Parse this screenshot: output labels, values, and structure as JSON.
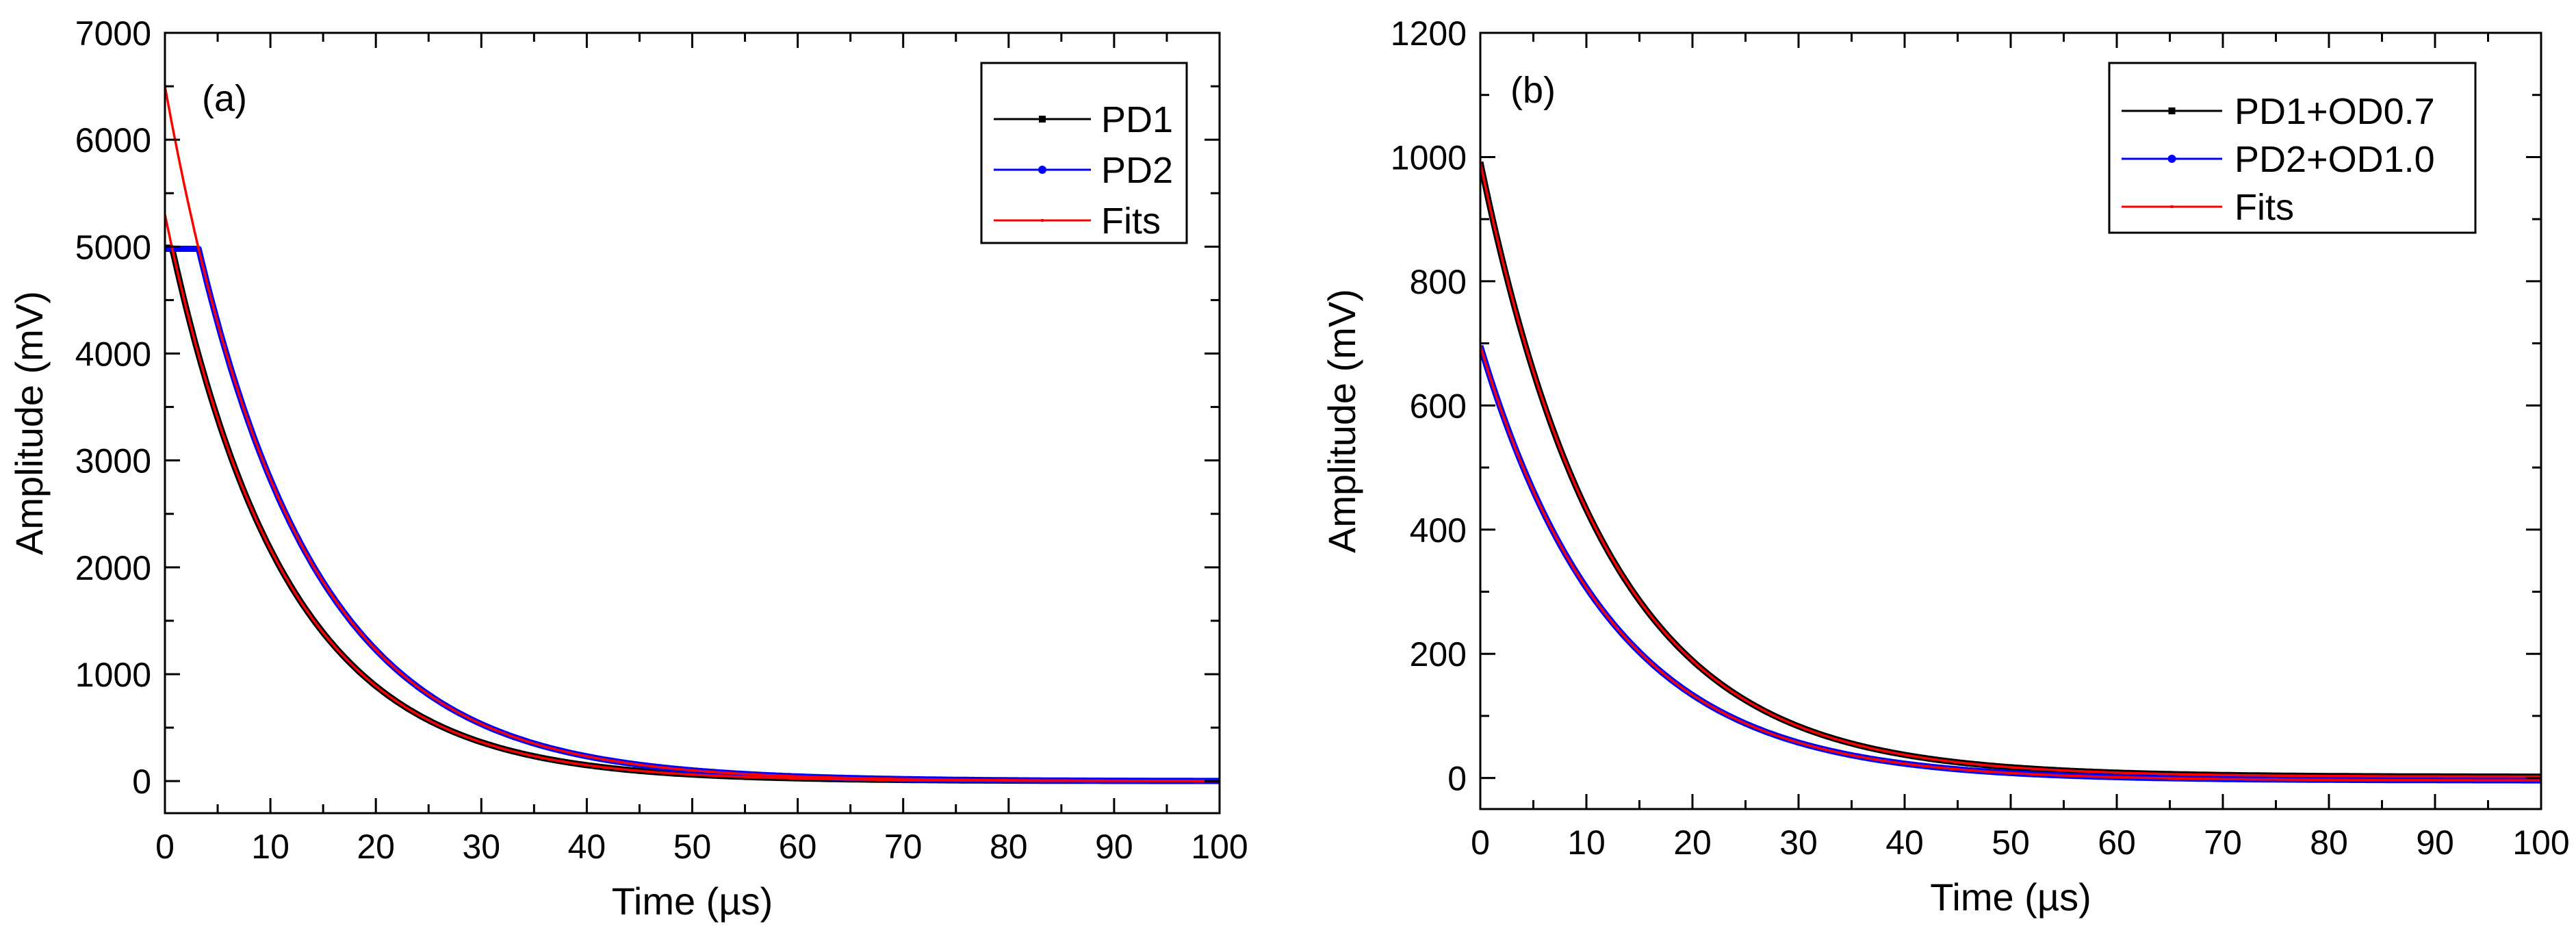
{
  "chart_data": [
    {
      "type": "line",
      "panel_label": "(a)",
      "title": "",
      "xlabel": "Time (µs)",
      "ylabel": "Amplitude (mV)",
      "xlim": [
        0,
        100
      ],
      "ylim": [
        -300,
        7000
      ],
      "xticks": [
        0,
        10,
        20,
        30,
        40,
        50,
        60,
        70,
        80,
        90,
        100
      ],
      "yticks": [
        0,
        1000,
        2000,
        3000,
        4000,
        5000,
        6000,
        7000
      ],
      "legend_position": "top-right",
      "series": [
        {
          "name": "PD1",
          "color": "#000000",
          "marker": "square",
          "model": "saturated_exponential",
          "amplitude": 5300,
          "tau": 11.2,
          "offset": 0,
          "saturation": 4990,
          "t_start": 0,
          "t_end": 100,
          "values_sampled": [
            [
              0,
              4990
            ],
            [
              1,
              4880
            ],
            [
              5,
              3400
            ],
            [
              10,
              2190
            ],
            [
              20,
              900
            ],
            [
              30,
              360
            ],
            [
              40,
              150
            ],
            [
              50,
              60
            ],
            [
              60,
              25
            ],
            [
              80,
              5
            ],
            [
              100,
              0
            ]
          ]
        },
        {
          "name": "PD2",
          "color": "#0000ff",
          "marker": "circle",
          "model": "saturated_exponential",
          "amplitude": 6500,
          "tau": 12.0,
          "offset": 0,
          "saturation": 4980,
          "t_start": 0,
          "t_end": 100,
          "values_sampled": [
            [
              0,
              4980
            ],
            [
              3.3,
              4960
            ],
            [
              5,
              4300
            ],
            [
              10,
              2850
            ],
            [
              20,
              1240
            ],
            [
              30,
              530
            ],
            [
              40,
              230
            ],
            [
              50,
              100
            ],
            [
              60,
              45
            ],
            [
              80,
              8
            ],
            [
              100,
              0
            ]
          ]
        },
        {
          "name": "Fits",
          "color": "#ff0000",
          "marker": "none",
          "model": "exponential_fits",
          "fits": [
            {
              "amplitude": 5300,
              "tau": 11.2,
              "offset": 0
            },
            {
              "amplitude": 6500,
              "tau": 12.0,
              "offset": 0
            }
          ]
        }
      ]
    },
    {
      "type": "line",
      "panel_label": "(b)",
      "title": "",
      "xlabel": "Time (µs)",
      "ylabel": "Amplitude (mV)",
      "xlim": [
        0,
        100
      ],
      "ylim": [
        -50,
        1200
      ],
      "xticks": [
        0,
        10,
        20,
        30,
        40,
        50,
        60,
        70,
        80,
        90,
        100
      ],
      "yticks": [
        0,
        200,
        400,
        600,
        800,
        1000,
        1200
      ],
      "legend_position": "top-right",
      "series": [
        {
          "name": "PD1+OD0.7",
          "color": "#000000",
          "marker": "square",
          "model": "exponential",
          "amplitude": 990,
          "tau": 12.0,
          "offset": 2,
          "t_start": 0,
          "t_end": 100,
          "values_sampled": [
            [
              0,
              990
            ],
            [
              5,
              655
            ],
            [
              10,
              432
            ],
            [
              20,
              186
            ],
            [
              30,
              82
            ],
            [
              40,
              37
            ],
            [
              50,
              17
            ],
            [
              60,
              9
            ],
            [
              80,
              4
            ],
            [
              100,
              2
            ]
          ]
        },
        {
          "name": "PD2+OD1.0",
          "color": "#0000ff",
          "marker": "circle",
          "model": "exponential",
          "amplitude": 700,
          "tau": 12.3,
          "offset": -4,
          "t_start": 0,
          "t_end": 100,
          "values_sampled": [
            [
              0,
              696
            ],
            [
              5,
              461
            ],
            [
              10,
              304
            ],
            [
              20,
              130
            ],
            [
              30,
              56
            ],
            [
              40,
              22
            ],
            [
              50,
              7
            ],
            [
              60,
              1
            ],
            [
              80,
              -3
            ],
            [
              100,
              -4
            ]
          ]
        },
        {
          "name": "Fits",
          "color": "#ff0000",
          "marker": "none",
          "model": "exponential_fits",
          "fits": [
            {
              "amplitude": 990,
              "tau": 12.0,
              "offset": 2
            },
            {
              "amplitude": 700,
              "tau": 12.3,
              "offset": -4
            }
          ]
        }
      ]
    }
  ]
}
